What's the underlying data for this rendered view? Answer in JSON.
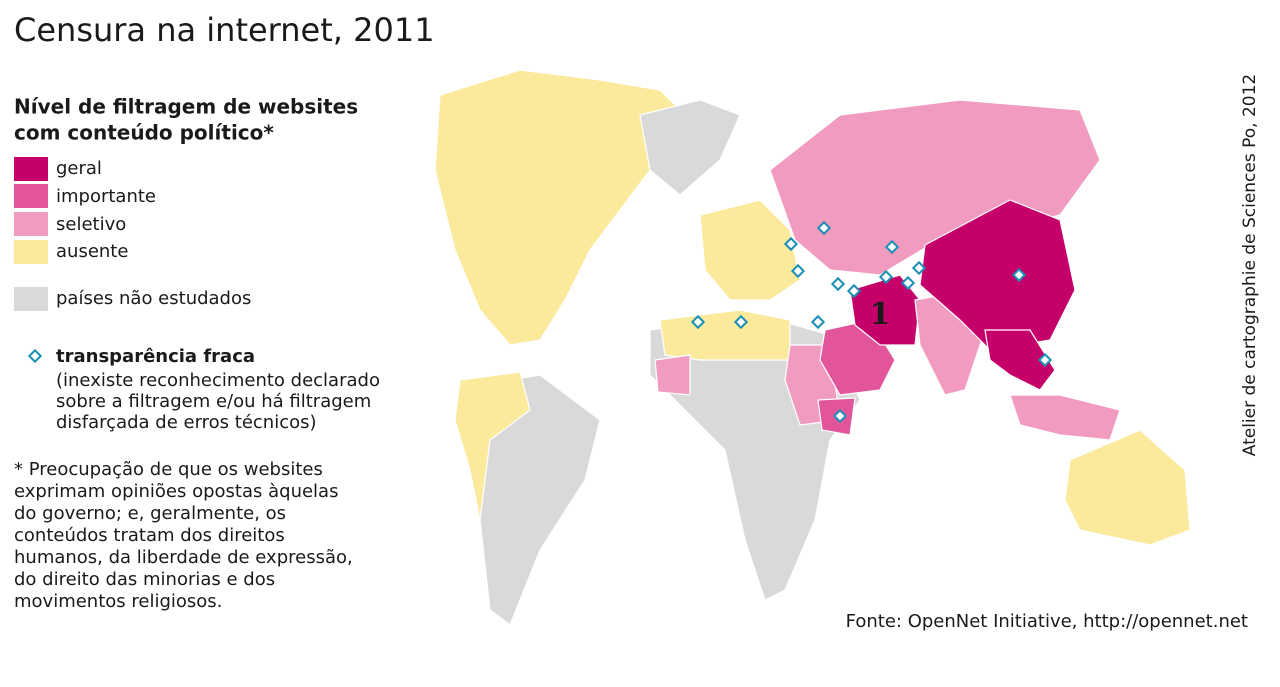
{
  "title": "Censura na internet, 2011",
  "legend": {
    "title_lines": [
      "Nível de filtragem de websites",
      "com conteúdo político*"
    ],
    "levels": [
      {
        "label": "geral",
        "color": "#c5006b"
      },
      {
        "label": "importante",
        "color": "#e2559a"
      },
      {
        "label": "seletivo",
        "color": "#f29bc0"
      },
      {
        "label": "ausente",
        "color": "#fbe99c"
      }
    ],
    "not_studied": {
      "label": "países não estudados",
      "color": "#d9d9d9"
    },
    "transparency": {
      "label": "transparência fraca",
      "note_lines": [
        "(inexiste reconhecimento declarado",
        "sobre a filtragem e/ou há filtragem",
        "disfarçada de erros técnicos)"
      ]
    }
  },
  "footnote_lines": [
    "* Preocupação de que os websites",
    "exprimam opiniões opostas àquelas",
    "do governo;  e, geralmente, os",
    "conteúdos tratam dos direitos",
    "humanos, da liberdade de expressão,",
    "do direito das minorias e dos",
    "movimentos religiosos."
  ],
  "map_label": "1",
  "credit": "Atelier de cartographie de Sciences Po, 2012",
  "source": "Fonte: OpenNet Initiative, http://opennet.net"
}
